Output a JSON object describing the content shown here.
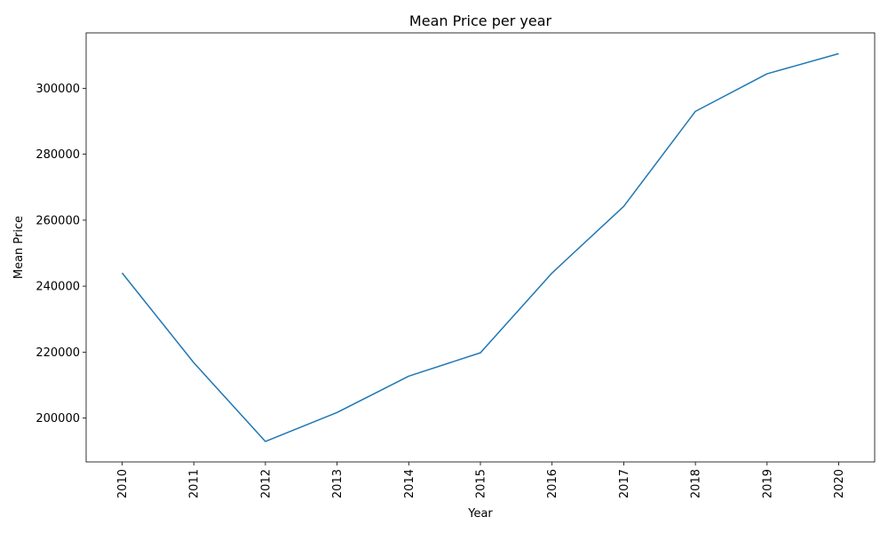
{
  "chart_data": {
    "type": "line",
    "title": "Mean Price per year",
    "xlabel": "Year",
    "ylabel": "Mean Price",
    "categories": [
      "2010",
      "2011",
      "2012",
      "2013",
      "2014",
      "2015",
      "2016",
      "2017",
      "2018",
      "2019",
      "2020"
    ],
    "y_ticks": [
      200000,
      220000,
      240000,
      260000,
      280000,
      300000
    ],
    "ylim": [
      186700,
      316800
    ],
    "series": [
      {
        "values": [
          244000,
          216800,
          192900,
          201700,
          212700,
          219800,
          244000,
          264200,
          293000,
          304400,
          310500
        ]
      }
    ],
    "line_color": "#1f77b4",
    "grid": false,
    "legend": "none"
  }
}
